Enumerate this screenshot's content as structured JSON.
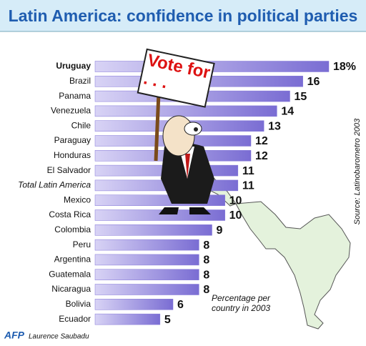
{
  "chart_data": {
    "type": "bar",
    "orientation": "horizontal",
    "title": "Latin America: confidence in political parties",
    "categories": [
      "Uruguay",
      "Brazil",
      "Panama",
      "Venezuela",
      "Chile",
      "Paraguay",
      "Honduras",
      "El Salvador",
      "Total Latin America",
      "Mexico",
      "Costa Rica",
      "Colombia",
      "Peru",
      "Argentina",
      "Guatemala",
      "Nicaragua",
      "Bolivia",
      "Ecuador"
    ],
    "values": [
      18,
      16,
      15,
      14,
      13,
      12,
      12,
      11,
      11,
      10,
      10,
      9,
      8,
      8,
      8,
      8,
      6,
      5
    ],
    "value_labels": [
      "18%",
      "16",
      "15",
      "14",
      "13",
      "12",
      "12",
      "11",
      "11",
      "10",
      "10",
      "9",
      "8",
      "8",
      "8",
      "8",
      "6",
      "5"
    ],
    "color": "#8276d8",
    "annotations": {
      "sign": "Vote for . . .",
      "note": "Percentage per country in 2003",
      "source": "Source: Latinobarometro 2003",
      "agency": "AFP",
      "author": "Laurence Saubadu"
    }
  }
}
